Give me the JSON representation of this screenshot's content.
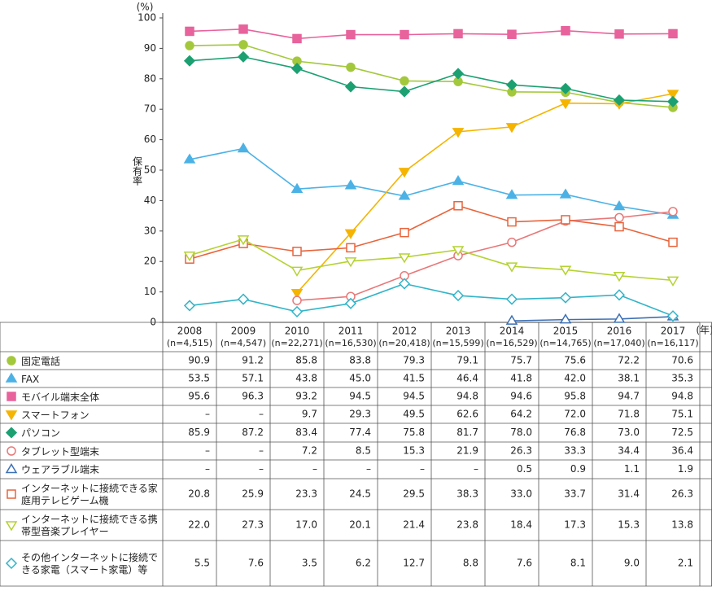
{
  "chart_data": {
    "type": "line",
    "y_unit": "(%)",
    "ylabel": "保有率",
    "x_unit": "(年)",
    "categories": [
      "2008",
      "2009",
      "2010",
      "2011",
      "2012",
      "2013",
      "2014",
      "2015",
      "2016",
      "2017"
    ],
    "sample_sizes": [
      "(n=4,515)",
      "(n=4,547)",
      "(n=22,271)",
      "(n=16,530)",
      "(n=20,418)",
      "(n=15,599)",
      "(n=16,529)",
      "(n=14,765)",
      "(n=17,040)",
      "(n=16,117)"
    ],
    "ylim": [
      0,
      100
    ],
    "yticks": [
      0,
      10,
      20,
      30,
      40,
      50,
      60,
      70,
      80,
      90,
      100
    ],
    "series": [
      {
        "name": "固定電話",
        "color": "#a3c83c",
        "marker": "circle",
        "filled": true,
        "values": [
          90.9,
          91.2,
          85.8,
          83.8,
          79.3,
          79.1,
          75.7,
          75.6,
          72.2,
          70.6
        ],
        "value_labels": [
          "90.9",
          "91.2",
          "85.8",
          "83.8",
          "79.3",
          "79.1",
          "75.7",
          "75.6",
          "72.2",
          "70.6"
        ]
      },
      {
        "name": "FAX",
        "color": "#4cb2e6",
        "marker": "triangle-up",
        "filled": true,
        "values": [
          53.5,
          57.1,
          43.8,
          45.0,
          41.5,
          46.4,
          41.8,
          42.0,
          38.1,
          35.3
        ],
        "value_labels": [
          "53.5",
          "57.1",
          "43.8",
          "45.0",
          "41.5",
          "46.4",
          "41.8",
          "42.0",
          "38.1",
          "35.3"
        ]
      },
      {
        "name": "モバイル端末全体",
        "color": "#e8629c",
        "marker": "square",
        "filled": true,
        "values": [
          95.6,
          96.3,
          93.2,
          94.5,
          94.5,
          94.8,
          94.6,
          95.8,
          94.7,
          94.8
        ],
        "value_labels": [
          "95.6",
          "96.3",
          "93.2",
          "94.5",
          "94.5",
          "94.8",
          "94.6",
          "95.8",
          "94.7",
          "94.8"
        ]
      },
      {
        "name": "スマートフォン",
        "color": "#f5b400",
        "marker": "triangle-down",
        "filled": true,
        "values": [
          null,
          null,
          9.7,
          29.3,
          49.5,
          62.6,
          64.2,
          72.0,
          71.8,
          75.1
        ],
        "value_labels": [
          "–",
          "–",
          "9.7",
          "29.3",
          "49.5",
          "62.6",
          "64.2",
          "72.0",
          "71.8",
          "75.1"
        ]
      },
      {
        "name": "パソコン",
        "color": "#1ca072",
        "marker": "diamond",
        "filled": true,
        "values": [
          85.9,
          87.2,
          83.4,
          77.4,
          75.8,
          81.7,
          78.0,
          76.8,
          73.0,
          72.5
        ],
        "value_labels": [
          "85.9",
          "87.2",
          "83.4",
          "77.4",
          "75.8",
          "81.7",
          "78.0",
          "76.8",
          "73.0",
          "72.5"
        ]
      },
      {
        "name": "タブレット型端末",
        "color": "#e87878",
        "marker": "circle",
        "filled": false,
        "values": [
          null,
          null,
          7.2,
          8.5,
          15.3,
          21.9,
          26.3,
          33.3,
          34.4,
          36.4
        ],
        "value_labels": [
          "–",
          "–",
          "7.2",
          "8.5",
          "15.3",
          "21.9",
          "26.3",
          "33.3",
          "34.4",
          "36.4"
        ]
      },
      {
        "name": "ウェアラブル端末",
        "color": "#3c70b4",
        "marker": "triangle-up",
        "filled": false,
        "values": [
          null,
          null,
          null,
          null,
          null,
          null,
          0.5,
          0.9,
          1.1,
          1.9
        ],
        "value_labels": [
          "–",
          "–",
          "–",
          "–",
          "–",
          "–",
          "0.5",
          "0.9",
          "1.1",
          "1.9"
        ]
      },
      {
        "name": "インターネットに接続できる家庭用テレビゲーム機",
        "color": "#e8643c",
        "marker": "square",
        "filled": false,
        "values": [
          20.8,
          25.9,
          23.3,
          24.5,
          29.5,
          38.3,
          33.0,
          33.7,
          31.4,
          26.3
        ],
        "value_labels": [
          "20.8",
          "25.9",
          "23.3",
          "24.5",
          "29.5",
          "38.3",
          "33.0",
          "33.7",
          "31.4",
          "26.3"
        ]
      },
      {
        "name": "インターネットに接続できる携帯型音楽プレイヤー",
        "color": "#b4d232",
        "marker": "triangle-down",
        "filled": false,
        "values": [
          22.0,
          27.3,
          17.0,
          20.1,
          21.4,
          23.8,
          18.4,
          17.3,
          15.3,
          13.8
        ],
        "value_labels": [
          "22.0",
          "27.3",
          "17.0",
          "20.1",
          "21.4",
          "23.8",
          "18.4",
          "17.3",
          "15.3",
          "13.8"
        ]
      },
      {
        "name": "その他インターネットに接続できる家電（スマート家電）等",
        "color": "#32b4c8",
        "marker": "diamond",
        "filled": false,
        "values": [
          5.5,
          7.6,
          3.5,
          6.2,
          12.7,
          8.8,
          7.6,
          8.1,
          9.0,
          2.1
        ],
        "value_labels": [
          "5.5",
          "7.6",
          "3.5",
          "6.2",
          "12.7",
          "8.8",
          "7.6",
          "8.1",
          "9.0",
          "2.1"
        ]
      }
    ]
  }
}
